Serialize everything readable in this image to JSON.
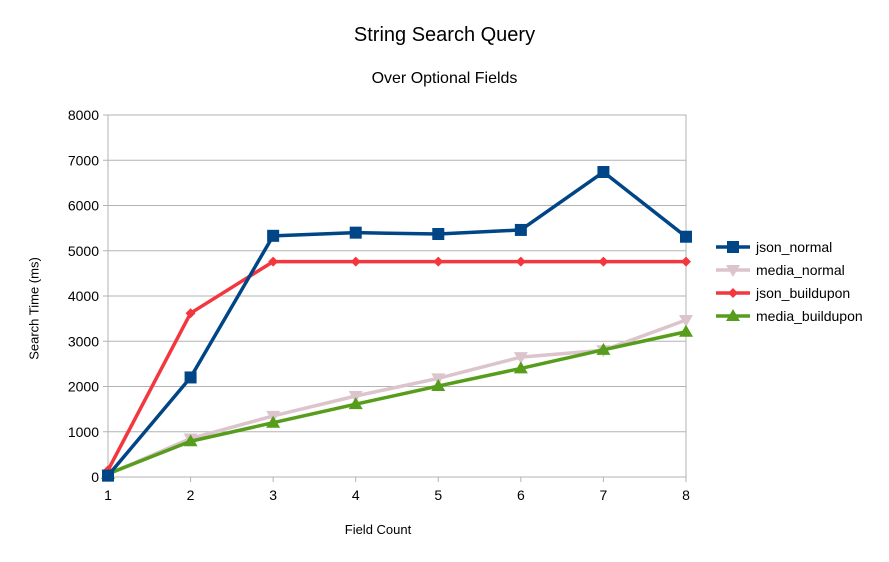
{
  "chart_data": {
    "type": "line",
    "title": "String Search Query",
    "subtitle": "Over Optional Fields",
    "xlabel": "Field Count",
    "ylabel": "Search Time (ms)",
    "x": [
      1,
      2,
      3,
      4,
      5,
      6,
      7,
      8
    ],
    "xlim": [
      1,
      8
    ],
    "ylim": [
      0,
      8000
    ],
    "yticks": [
      0,
      1000,
      2000,
      3000,
      4000,
      5000,
      6000,
      7000,
      8000
    ],
    "grid": true,
    "legend_position": "right",
    "series": [
      {
        "name": "json_normal",
        "color": "#004586",
        "marker": "square",
        "values": [
          30,
          2200,
          5330,
          5400,
          5370,
          5460,
          6740,
          5310
        ]
      },
      {
        "name": "media_normal",
        "color": "#dcc4cc",
        "marker": "triangle-down",
        "values": [
          60,
          850,
          1350,
          1790,
          2180,
          2650,
          2800,
          3470
        ]
      },
      {
        "name": "json_buildupon",
        "color": "#f2373f",
        "marker": "diamond",
        "values": [
          150,
          3620,
          4760,
          4760,
          4760,
          4760,
          4760,
          4760
        ]
      },
      {
        "name": "media_buildupon",
        "color": "#579d1c",
        "marker": "triangle-up",
        "values": [
          70,
          790,
          1200,
          1610,
          2010,
          2400,
          2810,
          3210
        ]
      }
    ]
  }
}
